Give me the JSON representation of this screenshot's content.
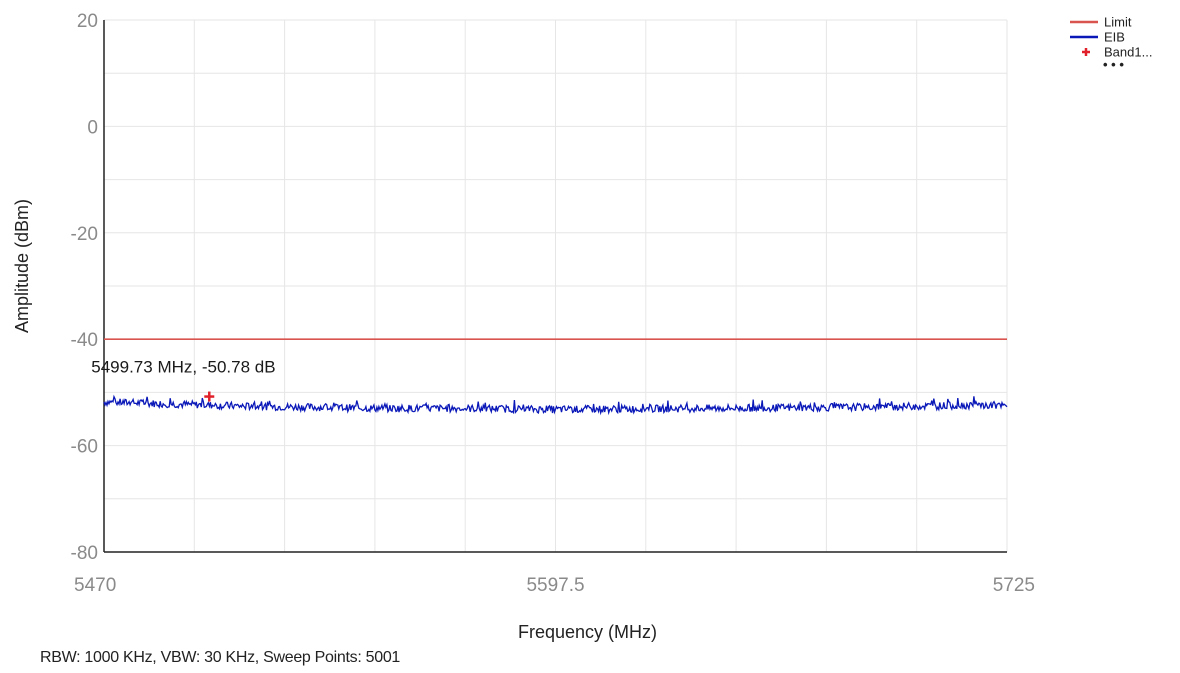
{
  "chart_data": {
    "type": "line",
    "xlabel": "Frequency (MHz)",
    "ylabel": "Amplitude (dBm)",
    "xlim": [
      5470,
      5725
    ],
    "ylim": [
      -80,
      20
    ],
    "x_ticks": [
      5470,
      5597.5,
      5725
    ],
    "x_tick_labels": [
      "5470",
      "5597.5",
      "5725"
    ],
    "y_ticks": [
      20,
      0,
      -20,
      -40,
      -60,
      -80
    ],
    "y_tick_labels": [
      "20",
      "0",
      "-20",
      "-40",
      "-60",
      "-80"
    ],
    "grid": true,
    "legend_position": "top-right",
    "series": [
      {
        "name": "Limit",
        "color": "#d9534f",
        "x": [
          5470,
          5725
        ],
        "y": [
          -40,
          -40
        ]
      },
      {
        "name": "EIB",
        "color": "#0a18b8",
        "x": [
          5470,
          5490,
          5510,
          5530,
          5550,
          5570,
          5597.5,
          5620,
          5640,
          5660,
          5680,
          5700,
          5715,
          5725
        ],
        "y": [
          -51.8,
          -52.2,
          -52.6,
          -52.8,
          -53.0,
          -53.0,
          -53.2,
          -53.1,
          -53.0,
          -52.9,
          -52.8,
          -52.6,
          -52.4,
          -52.6
        ]
      },
      {
        "name": "Band1...",
        "color": "#e0202a",
        "marker": "cross",
        "x": [
          5499.73
        ],
        "y": [
          -50.78
        ]
      }
    ],
    "annotations": [
      {
        "text": "5499.73 MHz, -50.78 dB",
        "x": 5499.73,
        "y": -50.78
      }
    ],
    "legend_more": "• • •"
  },
  "footer": {
    "text": "RBW: 1000 KHz,  VBW: 30 KHz,  Sweep Points: 5001"
  }
}
